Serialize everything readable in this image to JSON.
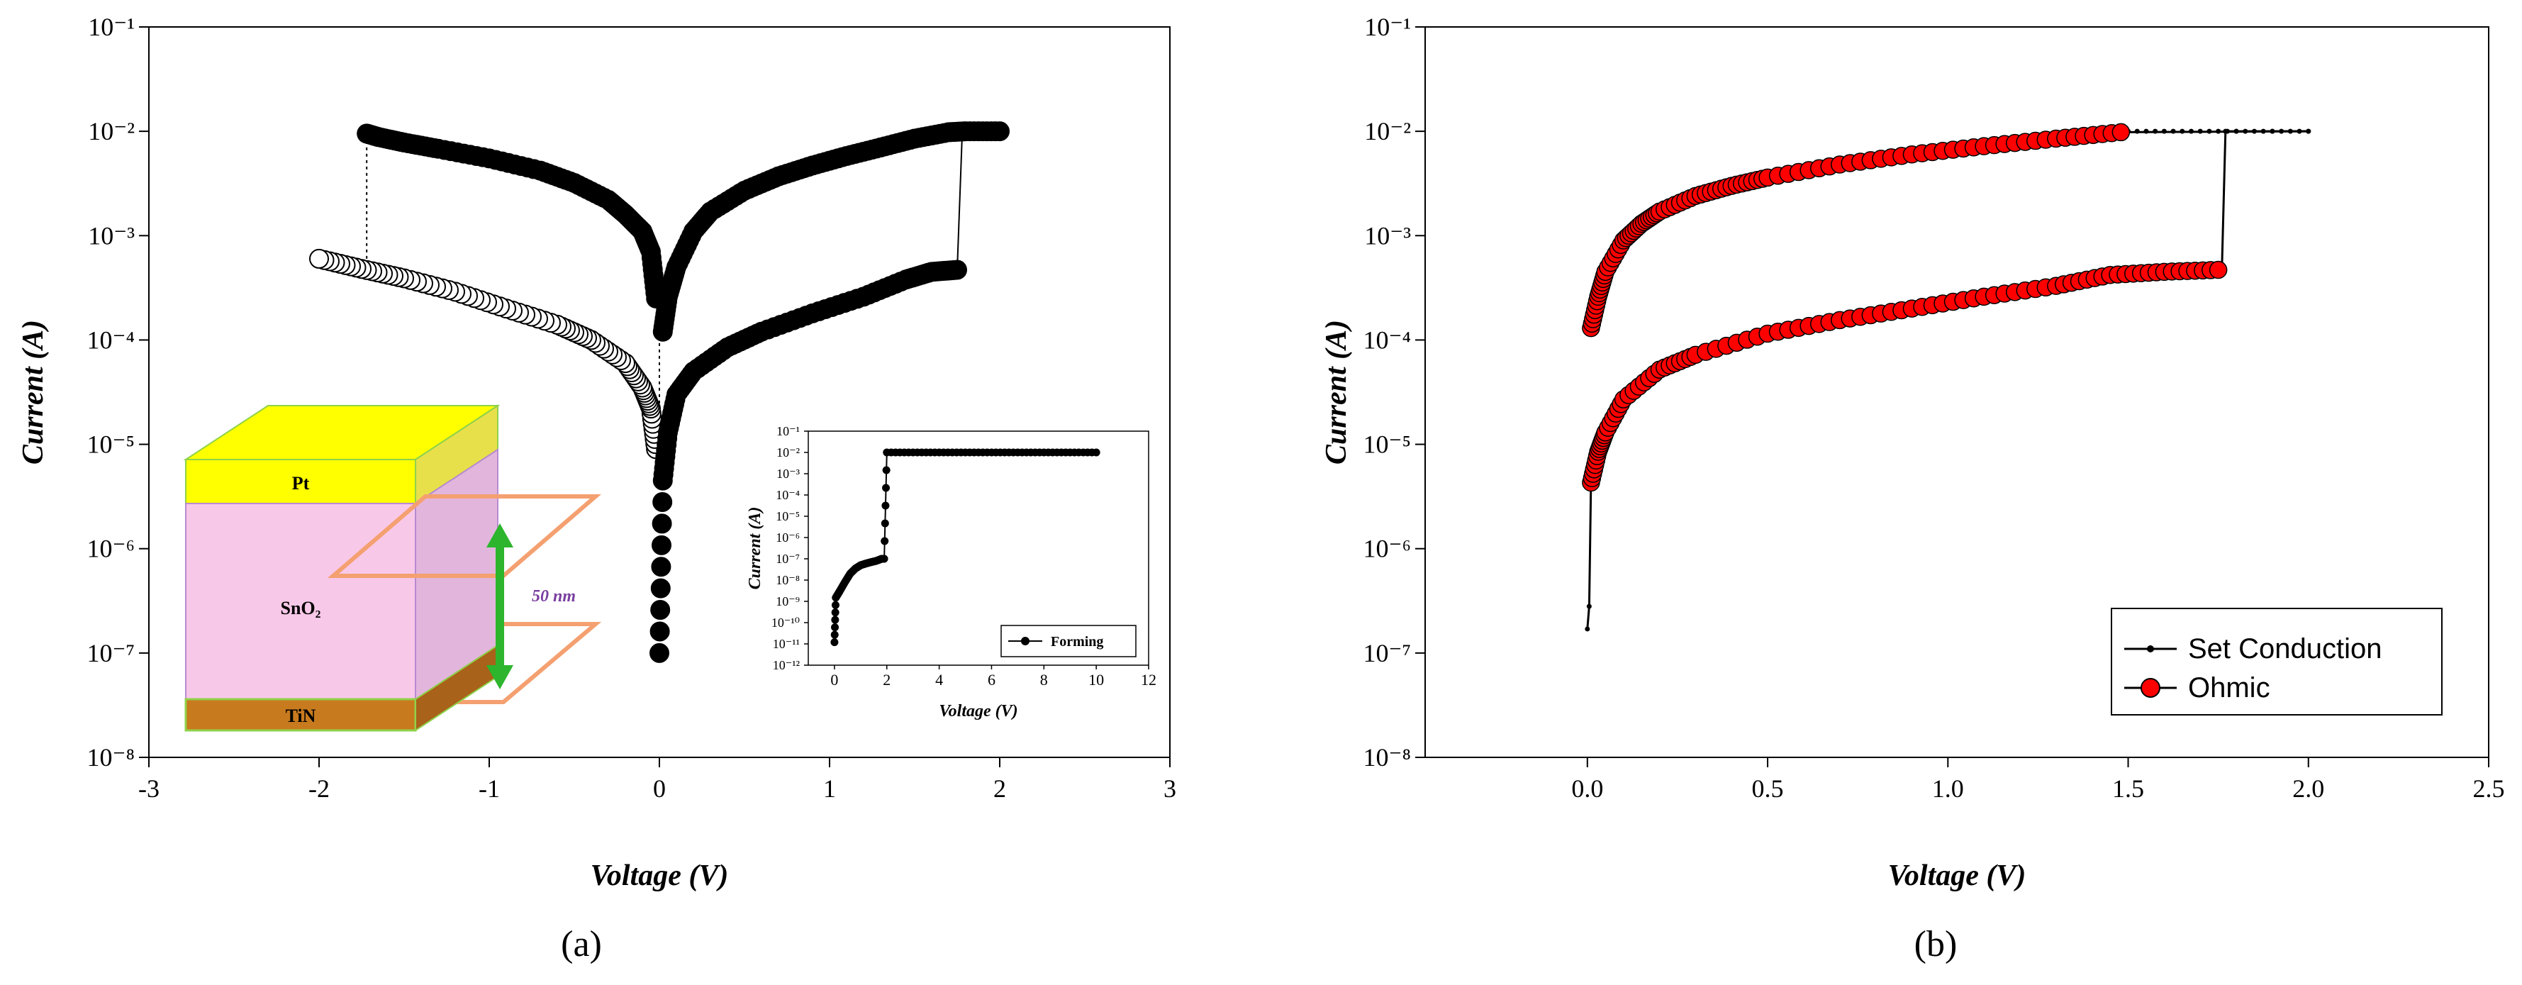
{
  "chart_data": [
    {
      "type": "scatter",
      "panel_label": "(a)",
      "xlabel": "Voltage (V)",
      "ylabel": "Current (A)",
      "xlim": [
        -3,
        3
      ],
      "ylim": [
        1e-08,
        0.1
      ],
      "yscale": "log",
      "x_ticks": [
        "-3",
        "-2",
        "-1",
        "0",
        "1",
        "2",
        "3"
      ],
      "y_ticks": [
        "10⁻⁸",
        "10⁻⁷",
        "10⁻⁶",
        "10⁻⁵",
        "10⁻⁴",
        "10⁻³",
        "10⁻²",
        "10⁻¹"
      ],
      "series": [
        {
          "marker": "filled",
          "branch": "negative-sweep-lrs-to-hrs",
          "x": [
            -0.02,
            -0.05,
            -0.1,
            -0.2,
            -0.3,
            -0.5,
            -0.7,
            -1.0,
            -1.3,
            -1.5,
            -1.65,
            -1.72
          ],
          "y": [
            0.00025,
            0.0007,
            0.0011,
            0.0016,
            0.0022,
            0.0032,
            0.0042,
            0.0055,
            0.0068,
            0.0078,
            0.0088,
            0.0095
          ]
        },
        {
          "marker": "open",
          "branch": "negative-sweep-hrs",
          "x": [
            -0.02,
            -0.05,
            -0.1,
            -0.2,
            -0.4,
            -0.6,
            -0.9,
            -1.2,
            -1.5,
            -1.75,
            -2.0
          ],
          "y": [
            9e-06,
            2.2e-05,
            3.5e-05,
            6e-05,
            0.0001,
            0.00014,
            0.0002,
            0.00029,
            0.00039,
            0.00048,
            0.0006
          ]
        },
        {
          "marker": "filled",
          "branch": "positive-sweep-hrs",
          "x": [
            0.0,
            0.02,
            0.05,
            0.1,
            0.2,
            0.4,
            0.6,
            0.9,
            1.2,
            1.45,
            1.6,
            1.75
          ],
          "y": [
            1e-07,
            4.5e-06,
            1.3e-05,
            3e-05,
            5e-05,
            8.5e-05,
            0.00012,
            0.00018,
            0.00026,
            0.00038,
            0.00045,
            0.00047
          ]
        },
        {
          "marker": "filled",
          "branch": "positive-sweep-lrs",
          "x": [
            0.02,
            0.05,
            0.1,
            0.2,
            0.3,
            0.5,
            0.7,
            0.9,
            1.1,
            1.3,
            1.5,
            1.7,
            1.8,
            2.0
          ],
          "y": [
            0.00012,
            0.00026,
            0.0005,
            0.0011,
            0.0017,
            0.0027,
            0.0037,
            0.0047,
            0.0058,
            0.007,
            0.0085,
            0.0098,
            0.01,
            0.01
          ]
        }
      ],
      "stack_labels": {
        "top": "Pt",
        "middle": "SnO₂",
        "bottom": "TiN",
        "thickness": "50 nm"
      },
      "stack_colors": {
        "top": "#ffff00",
        "middle": "#f8c8e8",
        "bottom": "#c87a1e",
        "outline": "#8fd24a",
        "arrow": "#2db52d",
        "plane": "#f4a070"
      },
      "inset": {
        "type": "line",
        "xlabel": "Voltage (V)",
        "ylabel": "Current (A)",
        "xlim": [
          -1,
          12
        ],
        "ylim": [
          1e-12,
          0.1
        ],
        "yscale": "log",
        "x_ticks": [
          "0",
          "2",
          "4",
          "6",
          "8",
          "10",
          "12"
        ],
        "y_ticks": [
          "10⁻¹²",
          "10⁻¹¹",
          "10⁻¹⁰",
          "10⁻⁹",
          "10⁻⁸",
          "10⁻⁷",
          "10⁻⁶",
          "10⁻⁵",
          "10⁻⁴",
          "10⁻³",
          "10⁻²",
          "10⁻¹"
        ],
        "legend": [
          "Forming"
        ],
        "series": [
          {
            "name": "Forming",
            "x": [
              0.0,
              0.05,
              0.2,
              0.4,
              0.6,
              0.8,
              1.0,
              1.2,
              1.4,
              1.6,
              1.8,
              1.9,
              2.0,
              3.0,
              4.0,
              5.0,
              6.0,
              7.0,
              8.0,
              9.0,
              10.0
            ],
            "y": [
              1.2e-11,
              1.5e-09,
              3e-09,
              8e-09,
              2e-08,
              3.5e-08,
              5e-08,
              6e-08,
              7e-08,
              8e-08,
              1e-07,
              1e-07,
              0.01,
              0.01,
              0.01,
              0.01,
              0.01,
              0.01,
              0.01,
              0.01,
              0.01
            ]
          }
        ]
      }
    },
    {
      "type": "line",
      "panel_label": "(b)",
      "xlabel": "Voltage (V)",
      "ylabel": "Current (A)",
      "xlim": [
        -0.45,
        2.5
      ],
      "ylim": [
        1e-08,
        0.1
      ],
      "yscale": "log",
      "x_ticks": [
        "0.0",
        "0.5",
        "1.0",
        "1.5",
        "2.0",
        "2.5"
      ],
      "y_ticks": [
        "10⁻⁸",
        "10⁻⁷",
        "10⁻⁶",
        "10⁻⁵",
        "10⁻⁴",
        "10⁻³",
        "10⁻²",
        "10⁻¹"
      ],
      "legend": [
        "Set Conduction",
        "Ohmic"
      ],
      "colors": {
        "set": "#000000",
        "ohmic": "#ff0000"
      },
      "series": [
        {
          "name": "Set Conduction",
          "x": [
            0.0,
            0.005,
            0.01,
            0.02,
            0.05,
            0.1,
            0.2,
            0.4,
            0.6,
            0.8,
            1.0,
            1.2,
            1.4,
            1.5,
            1.6,
            1.7,
            1.76,
            1.77,
            1.8,
            1.9,
            2.0
          ],
          "y": [
            1.7e-07,
            2.8e-07,
            4.3e-06,
            6.5e-06,
            1.3e-05,
            3e-05,
            5.5e-05,
            0.0001,
            0.00014,
            0.000195,
            0.00025,
            0.00031,
            0.0004,
            0.00043,
            0.00045,
            0.00047,
            0.00047,
            0.01,
            0.01,
            0.01,
            0.01
          ]
        },
        {
          "name": "Ohmic",
          "branch": "hrs",
          "x": [
            0.01,
            0.03,
            0.05,
            0.1,
            0.2,
            0.3,
            0.5,
            0.7,
            0.9,
            1.1,
            1.3,
            1.45,
            1.6,
            1.75
          ],
          "y": [
            4.3e-06,
            8.5e-06,
            1.3e-05,
            2.7e-05,
            5.2e-05,
            7.2e-05,
            0.000115,
            0.000155,
            0.0002,
            0.00026,
            0.00033,
            0.00042,
            0.00045,
            0.00047
          ]
        },
        {
          "name": "Ohmic",
          "branch": "lrs",
          "x": [
            0.01,
            0.03,
            0.05,
            0.1,
            0.15,
            0.2,
            0.3,
            0.4,
            0.5,
            0.7,
            0.9,
            1.1,
            1.3,
            1.48
          ],
          "y": [
            0.00013,
            0.00026,
            0.00045,
            0.0009,
            0.0013,
            0.0017,
            0.0024,
            0.003,
            0.0036,
            0.0048,
            0.006,
            0.0072,
            0.0085,
            0.0098
          ]
        }
      ]
    }
  ]
}
